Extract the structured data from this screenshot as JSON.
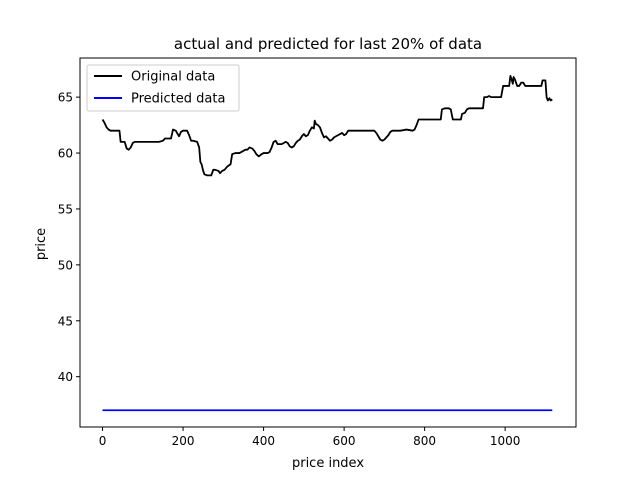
{
  "chart_data": {
    "type": "line",
    "title": "actual and predicted for last 20% of data",
    "xlabel": "price index",
    "ylabel": "price",
    "xlim": [
      -56,
      1176
    ],
    "ylim": [
      35.5,
      68.5
    ],
    "xticks": [
      0,
      200,
      400,
      600,
      800,
      1000
    ],
    "yticks": [
      40,
      45,
      50,
      55,
      60,
      65
    ],
    "grid": false,
    "legend_position": "top-left",
    "series": [
      {
        "name": "Original data",
        "color": "#000000",
        "points": [
          [
            0,
            63.0
          ],
          [
            5,
            62.7
          ],
          [
            10,
            62.3
          ],
          [
            15,
            62.1
          ],
          [
            20,
            62.0
          ],
          [
            35,
            62.0
          ],
          [
            42,
            62.0
          ],
          [
            45,
            61.0
          ],
          [
            55,
            61.0
          ],
          [
            60,
            60.4
          ],
          [
            65,
            60.3
          ],
          [
            70,
            60.5
          ],
          [
            75,
            60.9
          ],
          [
            80,
            61.0
          ],
          [
            100,
            61.0
          ],
          [
            120,
            61.0
          ],
          [
            140,
            61.0
          ],
          [
            150,
            61.1
          ],
          [
            155,
            61.3
          ],
          [
            170,
            61.3
          ],
          [
            175,
            62.1
          ],
          [
            182,
            62.0
          ],
          [
            185,
            61.8
          ],
          [
            190,
            61.5
          ],
          [
            195,
            61.9
          ],
          [
            200,
            62.0
          ],
          [
            210,
            62.0
          ],
          [
            215,
            61.6
          ],
          [
            220,
            61.1
          ],
          [
            225,
            61.1
          ],
          [
            235,
            61.0
          ],
          [
            240,
            60.5
          ],
          [
            243,
            59.2
          ],
          [
            246,
            59.0
          ],
          [
            250,
            58.4
          ],
          [
            253,
            58.1
          ],
          [
            260,
            58.0
          ],
          [
            270,
            58.0
          ],
          [
            275,
            58.5
          ],
          [
            280,
            58.5
          ],
          [
            288,
            58.4
          ],
          [
            292,
            58.2
          ],
          [
            297,
            58.4
          ],
          [
            303,
            58.5
          ],
          [
            310,
            58.8
          ],
          [
            318,
            59.0
          ],
          [
            322,
            59.9
          ],
          [
            330,
            60.0
          ],
          [
            340,
            60.0
          ],
          [
            350,
            60.2
          ],
          [
            355,
            60.3
          ],
          [
            360,
            60.3
          ],
          [
            365,
            60.5
          ],
          [
            372,
            60.4
          ],
          [
            377,
            60.2
          ],
          [
            382,
            59.9
          ],
          [
            388,
            59.7
          ],
          [
            395,
            59.9
          ],
          [
            400,
            60.0
          ],
          [
            410,
            60.0
          ],
          [
            415,
            60.1
          ],
          [
            420,
            60.5
          ],
          [
            425,
            61.0
          ],
          [
            430,
            61.1
          ],
          [
            435,
            60.8
          ],
          [
            445,
            60.8
          ],
          [
            450,
            60.9
          ],
          [
            455,
            61.0
          ],
          [
            460,
            60.9
          ],
          [
            465,
            60.6
          ],
          [
            470,
            60.5
          ],
          [
            475,
            60.6
          ],
          [
            480,
            60.9
          ],
          [
            485,
            61.1
          ],
          [
            490,
            61.2
          ],
          [
            495,
            61.5
          ],
          [
            500,
            61.7
          ],
          [
            505,
            61.5
          ],
          [
            510,
            61.6
          ],
          [
            515,
            62.0
          ],
          [
            520,
            62.3
          ],
          [
            525,
            62.2
          ],
          [
            527,
            62.9
          ],
          [
            530,
            62.6
          ],
          [
            535,
            62.5
          ],
          [
            540,
            62.3
          ],
          [
            545,
            61.8
          ],
          [
            550,
            61.4
          ],
          [
            555,
            61.5
          ],
          [
            560,
            61.3
          ],
          [
            565,
            61.1
          ],
          [
            570,
            61.2
          ],
          [
            575,
            61.4
          ],
          [
            580,
            61.5
          ],
          [
            585,
            61.6
          ],
          [
            590,
            61.7
          ],
          [
            595,
            61.8
          ],
          [
            600,
            61.6
          ],
          [
            605,
            61.7
          ],
          [
            610,
            62.0
          ],
          [
            620,
            62.0
          ],
          [
            640,
            62.0
          ],
          [
            660,
            62.0
          ],
          [
            675,
            62.0
          ],
          [
            680,
            61.8
          ],
          [
            685,
            61.5
          ],
          [
            690,
            61.2
          ],
          [
            695,
            61.1
          ],
          [
            700,
            61.2
          ],
          [
            705,
            61.4
          ],
          [
            710,
            61.6
          ],
          [
            715,
            61.9
          ],
          [
            720,
            62.0
          ],
          [
            740,
            62.0
          ],
          [
            755,
            62.1
          ],
          [
            770,
            62.0
          ],
          [
            775,
            62.1
          ],
          [
            780,
            62.5
          ],
          [
            785,
            63.0
          ],
          [
            800,
            63.0
          ],
          [
            830,
            63.0
          ],
          [
            840,
            63.0
          ],
          [
            843,
            63.9
          ],
          [
            850,
            64.0
          ],
          [
            860,
            64.0
          ],
          [
            865,
            63.9
          ],
          [
            870,
            63.0
          ],
          [
            880,
            63.0
          ],
          [
            890,
            63.0
          ],
          [
            893,
            63.5
          ],
          [
            900,
            63.6
          ],
          [
            905,
            63.9
          ],
          [
            910,
            64.0
          ],
          [
            930,
            64.0
          ],
          [
            945,
            64.0
          ],
          [
            948,
            65.0
          ],
          [
            955,
            65.0
          ],
          [
            960,
            65.1
          ],
          [
            965,
            65.0
          ],
          [
            980,
            65.0
          ],
          [
            990,
            65.0
          ],
          [
            995,
            66.0
          ],
          [
            1000,
            66.0
          ],
          [
            1010,
            66.0
          ],
          [
            1013,
            66.9
          ],
          [
            1016,
            66.6
          ],
          [
            1019,
            66.2
          ],
          [
            1021,
            66.8
          ],
          [
            1024,
            66.6
          ],
          [
            1027,
            66.3
          ],
          [
            1030,
            66.0
          ],
          [
            1035,
            66.0
          ],
          [
            1040,
            66.3
          ],
          [
            1045,
            66.3
          ],
          [
            1050,
            66.0
          ],
          [
            1060,
            66.0
          ],
          [
            1080,
            66.0
          ],
          [
            1090,
            66.0
          ],
          [
            1093,
            66.5
          ],
          [
            1100,
            66.5
          ],
          [
            1103,
            65.0
          ],
          [
            1106,
            64.7
          ],
          [
            1110,
            64.9
          ],
          [
            1113,
            64.7
          ],
          [
            1117,
            64.8
          ]
        ]
      },
      {
        "name": "Predicted data",
        "color": "#0000ff",
        "points": [
          [
            0,
            37.0
          ],
          [
            1117,
            37.0
          ]
        ]
      }
    ]
  }
}
